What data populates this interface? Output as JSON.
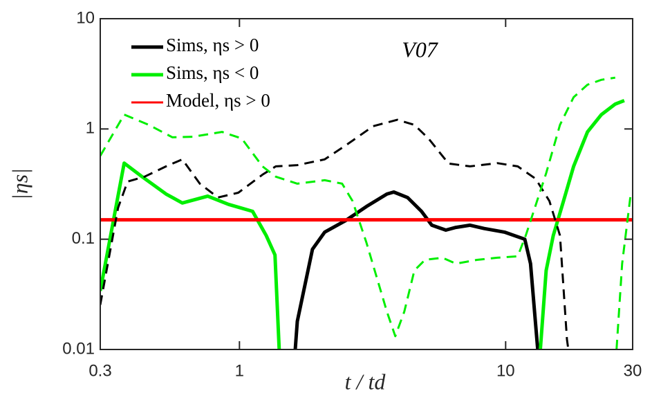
{
  "chart_data": {
    "type": "line",
    "annotation": "V07",
    "xlabel": "t / td",
    "ylabel": "|ηs|",
    "xscale": "log",
    "yscale": "log",
    "xlim": [
      0.3,
      30
    ],
    "ylim": [
      0.01,
      10
    ],
    "xticks": [
      0.3,
      1,
      10,
      30
    ],
    "yticks": [
      0.01,
      0.1,
      1,
      10
    ],
    "legend": "upper left",
    "series": [
      {
        "name": "Sims, ηs > 0",
        "color": "#000000",
        "dash": false,
        "x": [
          1.62,
          1.65,
          1.88,
          2.09,
          2.51,
          3.0,
          3.58,
          3.8,
          4.28,
          4.83,
          5.28,
          5.96,
          6.5,
          7.35,
          8.3,
          9.9,
          11.8,
          12.4,
          13.2
        ],
        "values": [
          0.01,
          0.018,
          0.081,
          0.116,
          0.148,
          0.198,
          0.257,
          0.268,
          0.239,
          0.179,
          0.134,
          0.121,
          0.128,
          0.134,
          0.125,
          0.116,
          0.1,
          0.06,
          0.01
        ]
      },
      {
        "name": "Sims, ηs < 0",
        "color": "#00ee00",
        "dash": false,
        "x": [
          0.3,
          0.369,
          0.43,
          0.53,
          0.61,
          0.76,
          0.91,
          1.12,
          1.26,
          1.36,
          1.41,
          null,
          13.5,
          14.2,
          15.1,
          16.5,
          18.0,
          20.3,
          22.9,
          25.8,
          27.9
        ],
        "values": [
          0.034,
          0.49,
          0.37,
          0.257,
          0.213,
          0.246,
          0.207,
          0.179,
          0.108,
          0.072,
          0.01,
          null,
          0.01,
          0.052,
          0.108,
          0.222,
          0.458,
          0.94,
          1.35,
          1.68,
          1.81
        ]
      },
      {
        "name": "Model, ηs > 0",
        "color": "#ff0000",
        "dash": false,
        "x": [
          0.3,
          30
        ],
        "values": [
          0.15,
          0.15
        ]
      },
      {
        "color": "#000000",
        "dash": true,
        "x": [
          0.3,
          0.35,
          0.38,
          0.44,
          0.53,
          0.61,
          0.71,
          0.83,
          0.99,
          1.22,
          1.37,
          1.65,
          2.09,
          2.51,
          3.18,
          3.92,
          4.54,
          5.13,
          6.1,
          7.35,
          9.3,
          11.1,
          12.97,
          14.6,
          16.0,
          17.0,
          17.2
        ],
        "values": [
          0.0254,
          0.193,
          0.333,
          0.369,
          0.458,
          0.53,
          0.319,
          0.239,
          0.264,
          0.385,
          0.458,
          0.47,
          0.53,
          0.71,
          1.06,
          1.21,
          1.09,
          0.82,
          0.486,
          0.458,
          0.49,
          0.458,
          0.353,
          0.222,
          0.108,
          0.0123,
          0.01
        ]
      },
      {
        "color": "#00ee00",
        "dash": true,
        "x": [
          0.3,
          0.369,
          0.456,
          0.56,
          0.67,
          0.86,
          1.02,
          1.22,
          1.37,
          1.65,
          2.09,
          2.43,
          2.66,
          3.0,
          3.58,
          3.85,
          4.16,
          4.54,
          4.98,
          5.78,
          6.5,
          7.8,
          9.3,
          11.1,
          11.9,
          14.2,
          16.0,
          18.0,
          20.3,
          22.9,
          25.8,
          null,
          26.1,
          27.4,
          29.5
        ],
        "values": [
          0.57,
          1.35,
          1.09,
          0.84,
          0.85,
          0.94,
          0.82,
          0.458,
          0.369,
          0.319,
          0.343,
          0.319,
          0.222,
          0.093,
          0.022,
          0.0132,
          0.022,
          0.052,
          0.065,
          0.068,
          0.06,
          0.065,
          0.068,
          0.07,
          0.108,
          0.397,
          1.09,
          1.94,
          2.52,
          2.79,
          2.92,
          null,
          0.01,
          0.06,
          0.257
        ]
      }
    ]
  }
}
